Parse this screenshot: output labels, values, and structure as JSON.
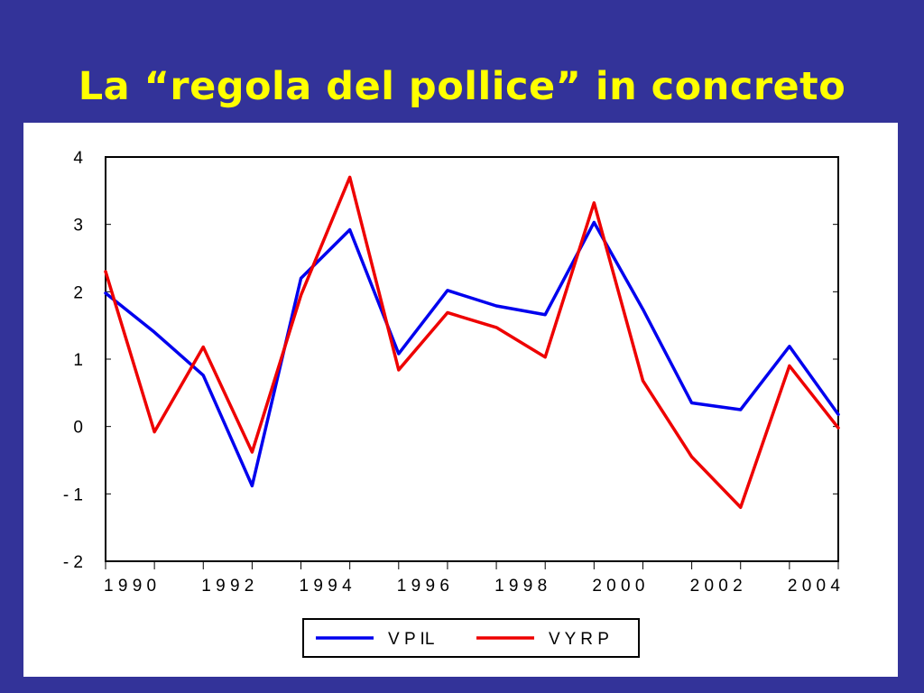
{
  "slide": {
    "title": "La “regola del pollice” in concreto"
  },
  "colors": {
    "background": "#333399",
    "title": "#ffff00",
    "panel": "#ffffff",
    "vpil": "#0000ee",
    "vyrp": "#ee0000"
  },
  "chart_data": {
    "type": "line",
    "title": "",
    "xlabel": "",
    "ylabel": "",
    "x": [
      1990,
      1991,
      1992,
      1993,
      1994,
      1995,
      1996,
      1997,
      1998,
      1999,
      2000,
      2001,
      2002,
      2003,
      2004,
      2005
    ],
    "x_tick_labels": [
      "1 9 9 0",
      "1 9 9 2",
      "1 9 9 4",
      "1 9 9 6",
      "1 9 9 8",
      "2 0 0 0",
      "2 0 0 2",
      "2 0 0 4"
    ],
    "x_tick_values": [
      1990,
      1992,
      1994,
      1996,
      1998,
      2000,
      2002,
      2004
    ],
    "y_tick_labels": [
      "4",
      "3",
      "2",
      "1",
      "0",
      "- 1",
      "- 2"
    ],
    "y_tick_values": [
      4,
      3,
      2,
      1,
      0,
      -1,
      -2
    ],
    "xlim": [
      1990,
      2005
    ],
    "ylim": [
      -2,
      4
    ],
    "grid": false,
    "legend_position": "bottom-center",
    "series": [
      {
        "name": "V P IL",
        "color": "#0000ee",
        "values": [
          1.98,
          1.4,
          0.76,
          -0.88,
          2.2,
          2.92,
          1.08,
          2.02,
          1.79,
          1.66,
          3.03,
          1.74,
          0.35,
          0.25,
          1.19,
          0.18
        ]
      },
      {
        "name": "V Y R P",
        "color": "#ee0000",
        "values": [
          2.3,
          -0.08,
          1.18,
          -0.38,
          1.95,
          3.7,
          0.84,
          1.69,
          1.47,
          1.03,
          3.32,
          0.68,
          -0.45,
          -1.2,
          0.9,
          -0.02
        ]
      }
    ]
  }
}
